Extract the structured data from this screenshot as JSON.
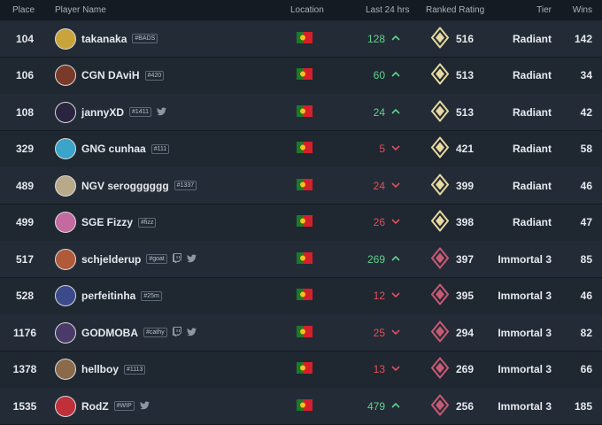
{
  "header": {
    "place": "Place",
    "player": "Player Name",
    "location": "Location",
    "last24": "Last 24 hrs",
    "rating": "Ranked Rating",
    "tier": "Tier",
    "wins": "Wins"
  },
  "rows": [
    {
      "place": "104",
      "name": "takanaka",
      "tag": "#BADS",
      "change": "128",
      "trend": "up",
      "rating": "516",
      "tier": "Radiant",
      "wins": "142",
      "avatar_color": "#c9a43a",
      "tier_color": "#e7d9a0",
      "twitch": false,
      "twitter": false
    },
    {
      "place": "106",
      "name": "CGN DAviH",
      "tag": "#420",
      "change": "60",
      "trend": "up",
      "rating": "513",
      "tier": "Radiant",
      "wins": "34",
      "avatar_color": "#7a3a2a",
      "tier_color": "#e7d9a0",
      "twitch": false,
      "twitter": false
    },
    {
      "place": "108",
      "name": "jannyXD",
      "tag": "#1411",
      "change": "24",
      "trend": "up",
      "rating": "513",
      "tier": "Radiant",
      "wins": "42",
      "avatar_color": "#2a2440",
      "tier_color": "#e7d9a0",
      "twitch": false,
      "twitter": true
    },
    {
      "place": "329",
      "name": "GNG cunhaa",
      "tag": "#111",
      "change": "5",
      "trend": "down",
      "rating": "421",
      "tier": "Radiant",
      "wins": "58",
      "avatar_color": "#3aa4c9",
      "tier_color": "#e7d9a0",
      "twitch": false,
      "twitter": false
    },
    {
      "place": "489",
      "name": "NGV serogggggg",
      "tag": "#1337",
      "change": "24",
      "trend": "down",
      "rating": "399",
      "tier": "Radiant",
      "wins": "46",
      "avatar_color": "#b8a98a",
      "tier_color": "#e7d9a0",
      "twitch": false,
      "twitter": false
    },
    {
      "place": "499",
      "name": "SGE Fizzy",
      "tag": "#fizz",
      "change": "26",
      "trend": "down",
      "rating": "398",
      "tier": "Radiant",
      "wins": "47",
      "avatar_color": "#c46aa0",
      "tier_color": "#e7d9a0",
      "twitch": false,
      "twitter": false
    },
    {
      "place": "517",
      "name": "schjelderup",
      "tag": "#goat",
      "change": "269",
      "trend": "up",
      "rating": "397",
      "tier": "Immortal 3",
      "wins": "85",
      "avatar_color": "#b05a3a",
      "tier_color": "#c85a74",
      "twitch": true,
      "twitter": true
    },
    {
      "place": "528",
      "name": "perfeitinha",
      "tag": "#25m",
      "change": "12",
      "trend": "down",
      "rating": "395",
      "tier": "Immortal 3",
      "wins": "46",
      "avatar_color": "#3a4a8a",
      "tier_color": "#c85a74",
      "twitch": false,
      "twitter": false
    },
    {
      "place": "1176",
      "name": "GODMOBA",
      "tag": "#cathy",
      "change": "25",
      "trend": "down",
      "rating": "294",
      "tier": "Immortal 3",
      "wins": "82",
      "avatar_color": "#4a3a6a",
      "tier_color": "#c85a74",
      "twitch": true,
      "twitter": true
    },
    {
      "place": "1378",
      "name": "hellboy",
      "tag": "#1113",
      "change": "13",
      "trend": "down",
      "rating": "269",
      "tier": "Immortal 3",
      "wins": "66",
      "avatar_color": "#8a6a4a",
      "tier_color": "#c85a74",
      "twitch": false,
      "twitter": false
    },
    {
      "place": "1535",
      "name": "RodZ",
      "tag": "#WIP",
      "change": "479",
      "trend": "up",
      "rating": "256",
      "tier": "Immortal 3",
      "wins": "185",
      "avatar_color": "#c0303a",
      "tier_color": "#c85a74",
      "twitch": false,
      "twitter": true
    }
  ]
}
